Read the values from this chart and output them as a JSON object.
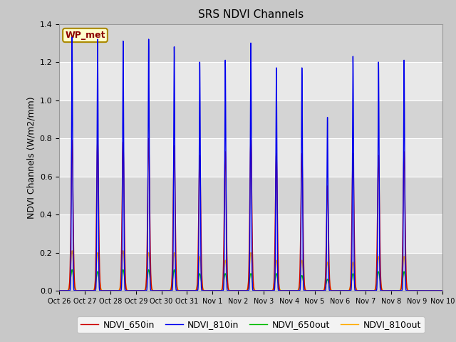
{
  "title": "SRS NDVI Channels",
  "ylabel": "NDVI Channels (W/m2/mm)",
  "ylim": [
    0,
    1.4
  ],
  "yticks": [
    0.0,
    0.2,
    0.4,
    0.6,
    0.8,
    1.0,
    1.2,
    1.4
  ],
  "fig_bg_color": "#c8c8c8",
  "plot_bg_color": "#e0e0e0",
  "legend_entries": [
    "NDVI_650in",
    "NDVI_810in",
    "NDVI_650out",
    "NDVI_810out"
  ],
  "legend_colors": [
    "#cc0000",
    "#0000ee",
    "#00bb00",
    "#ffaa00"
  ],
  "wp_label": "WP_met",
  "x_tick_labels": [
    "Oct 26",
    "Oct 27",
    "Oct 28",
    "Oct 29",
    "Oct 30",
    "Oct 31",
    "Nov 1",
    "Nov 2",
    "Nov 3",
    "Nov 4",
    "Nov 5",
    "Nov 6",
    "Nov 7",
    "Nov 8",
    "Nov 9",
    "Nov 10"
  ],
  "peak_650in": [
    0.79,
    0.79,
    0.78,
    0.8,
    0.76,
    0.71,
    0.73,
    0.79,
    0.72,
    0.72,
    0.55,
    0.72,
    0.71,
    0.73
  ],
  "peak_810in": [
    1.33,
    1.32,
    1.31,
    1.32,
    1.28,
    1.2,
    1.21,
    1.3,
    1.17,
    1.17,
    0.91,
    1.23,
    1.2,
    1.21
  ],
  "peak_650out": [
    0.11,
    0.1,
    0.11,
    0.11,
    0.11,
    0.09,
    0.09,
    0.09,
    0.09,
    0.08,
    0.06,
    0.09,
    0.1,
    0.1
  ],
  "peak_810out": [
    0.21,
    0.2,
    0.21,
    0.2,
    0.2,
    0.18,
    0.16,
    0.2,
    0.16,
    0.16,
    0.15,
    0.15,
    0.18,
    0.18
  ]
}
